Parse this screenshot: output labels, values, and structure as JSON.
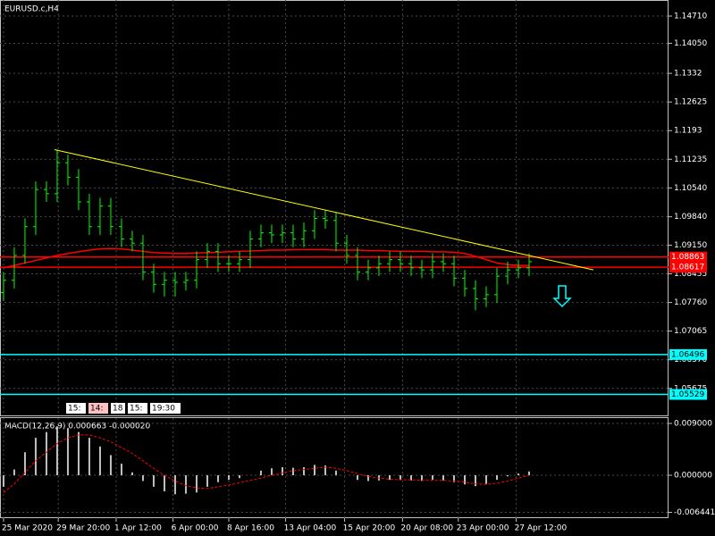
{
  "chart_data": [
    {
      "type": "ohlc",
      "title": "EURUSD.c,H4",
      "color": "#00ff00",
      "open": [
        1.08,
        1.083,
        1.089,
        1.096,
        1.105,
        1.104,
        1.1115,
        1.108,
        1.102,
        1.096,
        1.101,
        1.096,
        1.093,
        1.092,
        1.085,
        1.082,
        1.083,
        1.0825,
        1.083,
        1.088,
        1.09,
        1.087,
        1.087,
        1.088,
        1.093,
        1.0945,
        1.094,
        1.0945,
        1.093,
        1.095,
        1.098,
        1.0975,
        1.092,
        1.089,
        1.085,
        1.086,
        1.087,
        1.088,
        1.087,
        1.086,
        1.0855,
        1.0875,
        1.087,
        1.0835,
        1.081,
        1.0785,
        1.0795,
        1.084,
        1.0855,
        1.086
      ],
      "high": [
        1.085,
        1.091,
        1.098,
        1.107,
        1.107,
        1.1147,
        1.1135,
        1.11,
        1.104,
        1.103,
        1.103,
        1.098,
        1.095,
        1.094,
        1.087,
        1.085,
        1.085,
        1.085,
        1.09,
        1.092,
        1.092,
        1.089,
        1.09,
        1.095,
        1.0965,
        1.0965,
        1.0965,
        1.0965,
        1.097,
        1.1,
        1.1,
        1.0995,
        1.094,
        1.091,
        1.088,
        1.089,
        1.09,
        1.09,
        1.089,
        1.088,
        1.0895,
        1.0895,
        1.089,
        1.0855,
        1.083,
        1.0815,
        1.086,
        1.0875,
        1.088,
        1.0895
      ],
      "low": [
        1.078,
        1.081,
        1.087,
        1.094,
        1.102,
        1.102,
        1.106,
        1.1,
        1.094,
        1.094,
        1.094,
        1.091,
        1.09,
        1.083,
        1.08,
        1.079,
        1.079,
        1.0805,
        1.081,
        1.086,
        1.085,
        1.085,
        1.085,
        1.086,
        1.091,
        1.092,
        1.092,
        1.091,
        1.091,
        1.093,
        1.0955,
        1.09,
        1.087,
        1.083,
        1.083,
        1.084,
        1.085,
        1.085,
        1.084,
        1.0835,
        1.0835,
        1.085,
        1.0815,
        1.079,
        1.0757,
        1.0765,
        1.0775,
        1.082,
        1.0835,
        1.084
      ],
      "close": [
        1.083,
        1.089,
        1.096,
        1.105,
        1.104,
        1.1115,
        1.108,
        1.102,
        1.096,
        1.101,
        1.096,
        1.093,
        1.092,
        1.085,
        1.082,
        1.083,
        1.0825,
        1.083,
        1.088,
        1.09,
        1.087,
        1.087,
        1.088,
        1.093,
        1.0945,
        1.094,
        1.0945,
        1.093,
        1.095,
        1.098,
        1.0975,
        1.092,
        1.089,
        1.085,
        1.086,
        1.087,
        1.088,
        1.087,
        1.086,
        1.0855,
        1.0875,
        1.087,
        1.0835,
        1.081,
        1.0785,
        1.0795,
        1.084,
        1.0855,
        1.086,
        1.0875
      ],
      "series": [
        {
          "color": "#ff0000",
          "values": [
            1.086,
            1.0866,
            1.0872,
            1.0878,
            1.0884,
            1.089,
            1.0895,
            1.0899,
            1.0903,
            1.0906,
            1.0907,
            1.0906,
            1.0903,
            1.09,
            1.0897,
            1.0896,
            1.0895,
            1.0895,
            1.0896,
            1.0897,
            1.0898,
            1.0899,
            1.09,
            1.0901,
            1.0902,
            1.0903,
            1.0903,
            1.0904,
            1.0904,
            1.0904,
            1.0904,
            1.0903,
            1.0903,
            1.0903,
            1.0902,
            1.0902,
            1.0901,
            1.09,
            1.09,
            1.09,
            1.0899,
            1.0899,
            1.0898,
            1.0895,
            1.0888,
            1.088,
            1.0872,
            1.0868,
            1.0866,
            1.0866
          ]
        }
      ],
      "levels": [
        {
          "value": 1.08863,
          "color": "#ff0000"
        },
        {
          "value": 1.08617,
          "color": "#ff0000"
        },
        {
          "value": 1.06496,
          "color": "#00ffff"
        },
        {
          "value": 1.05529,
          "color": "#00ffff"
        }
      ],
      "trendline": {
        "color": "#ffff00",
        "x": [
          4.75,
          55
        ],
        "y": [
          1.1147,
          1.0855
        ]
      },
      "time_labels": [
        "15:",
        "14:",
        "18",
        "15:",
        "19:30"
      ],
      "xlim": [
        -0.33,
        62
      ],
      "xticks": [
        {
          "value": 0,
          "label": "25 Mar 2020"
        },
        {
          "value": 5.1,
          "label": "29 Mar 20:00"
        },
        {
          "value": 10.5,
          "label": "1 Apr 12:00"
        },
        {
          "value": 15.8,
          "label": "6 Apr 00:00"
        },
        {
          "value": 21,
          "label": "8 Apr 16:00"
        },
        {
          "value": 26.3,
          "label": "13 Apr 04:00"
        },
        {
          "value": 31.8,
          "label": "15 Apr 20:00"
        },
        {
          "value": 37.2,
          "label": "20 Apr 08:00"
        },
        {
          "value": 42.4,
          "label": "23 Apr 00:00"
        },
        {
          "value": 47.8,
          "label": "27 Apr 12:00"
        }
      ],
      "ylim": [
        1.0502,
        1.151
      ],
      "yticks": [
        {
          "value": 1.1471,
          "label": "1.14710"
        },
        {
          "value": 1.1405,
          "label": "1.14050"
        },
        1.1332,
        1.12625,
        1.1193,
        1.11235,
        {
          "value": 1.1054,
          "label": "1.10540"
        },
        {
          "value": 1.0984,
          "label": "1.09840"
        },
        {
          "value": 1.0915,
          "label": "1.09150"
        },
        1.08455,
        {
          "value": 1.0776,
          "label": "1.07760"
        },
        1.07065,
        {
          "value": 1.0637,
          "label": "1.06370"
        },
        1.05675
      ],
      "grid": true
    },
    {
      "type": "macd",
      "title": "MACD(12,26,9) 0.000663 -0.000020",
      "series": [
        {
          "color": "#c0c0c0",
          "values": [
            -0.002,
            0.001,
            0.004,
            0.0065,
            0.0075,
            0.0085,
            0.0082,
            0.0075,
            0.0065,
            0.005,
            0.0035,
            0.002,
            0.0005,
            -0.001,
            -0.002,
            -0.0028,
            -0.0033,
            -0.0032,
            -0.003,
            -0.002,
            -0.0012,
            -0.0008,
            -0.0005,
            0,
            0.0008,
            0.0012,
            0.0014,
            0.0013,
            0.0014,
            0.0018,
            0.0017,
            0.0008,
            0,
            -0.0008,
            -0.001,
            -0.0009,
            -0.0008,
            -0.0008,
            -0.0009,
            -0.001,
            -0.0008,
            -0.0009,
            -0.0012,
            -0.0016,
            -0.0019,
            -0.0015,
            -0.0008,
            -0.0002,
            0.0003,
            0.000663
          ]
        },
        {
          "color": "#ff0000",
          "values": [
            -0.003,
            -0.0015,
            0.0005,
            0.0025,
            0.004,
            0.0055,
            0.0065,
            0.007,
            0.007,
            0.0065,
            0.0058,
            0.0048,
            0.0038,
            0.0025,
            0.0012,
            0,
            -0.001,
            -0.0018,
            -0.0022,
            -0.0023,
            -0.002,
            -0.0017,
            -0.0013,
            -0.0009,
            -0.0005,
            0,
            0.0004,
            0.0008,
            0.001,
            0.0012,
            0.0014,
            0.0012,
            0.0008,
            0.0003,
            -0.0002,
            -0.0005,
            -0.0007,
            -0.0008,
            -0.0008,
            -0.0009,
            -0.0009,
            -0.0009,
            -0.001,
            -0.0012,
            -0.0015,
            -0.0016,
            -0.0014,
            -0.001,
            -0.0005,
            -2e-05
          ]
        }
      ],
      "xlim": [
        -0.33,
        62
      ],
      "ylim": [
        -0.00745,
        0.00993
      ],
      "yticks": [
        {
          "value": 0.009,
          "label": "0.009000"
        },
        {
          "value": 0,
          "label": "0.000000"
        },
        -0.006441
      ],
      "grid": true
    }
  ]
}
